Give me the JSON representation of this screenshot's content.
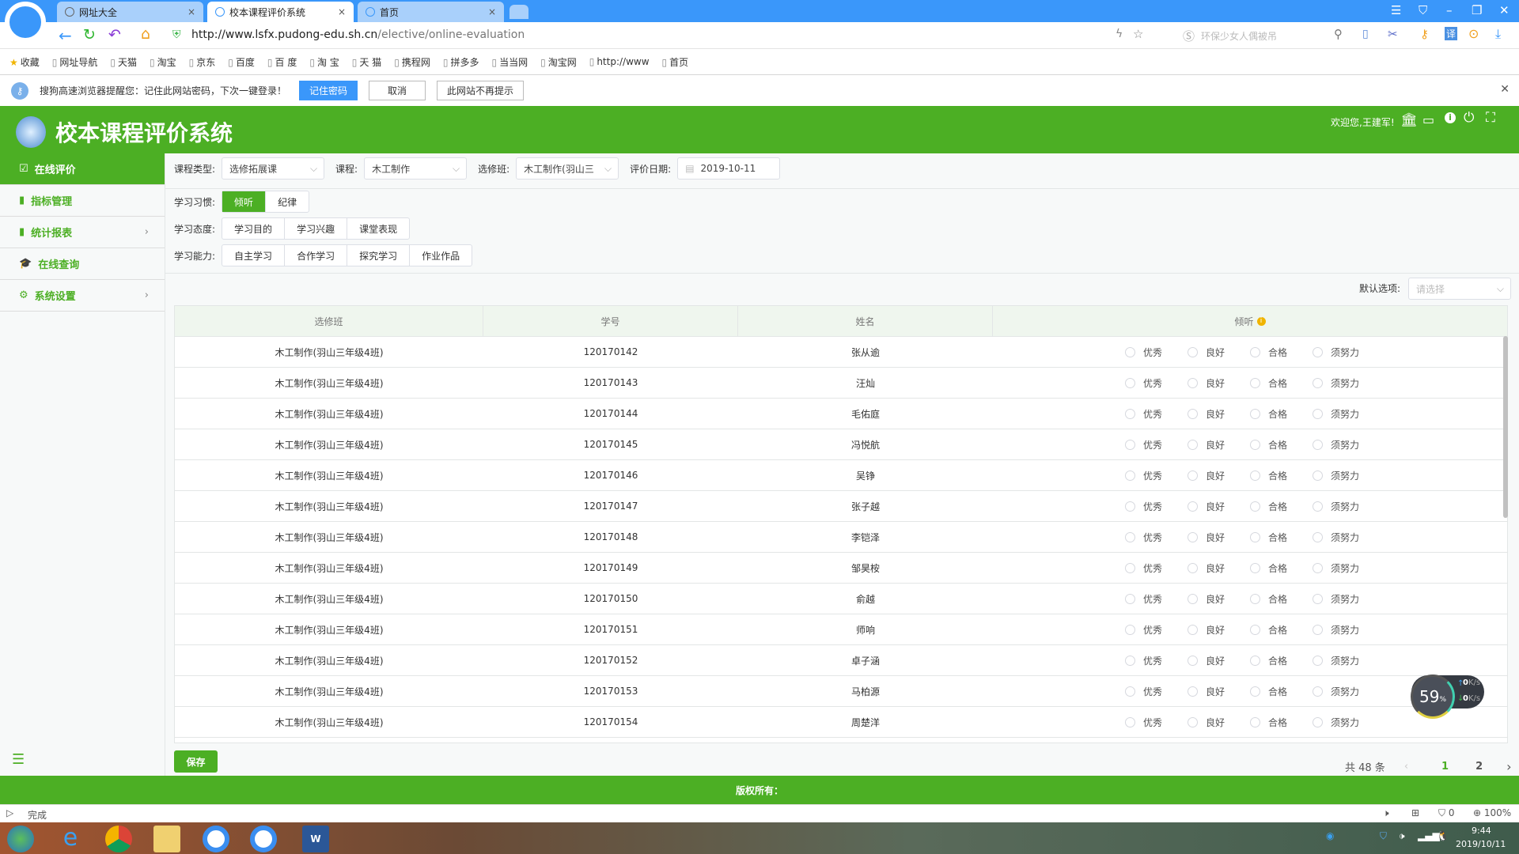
{
  "browser": {
    "tabs": [
      {
        "label": "网址大全",
        "active": false
      },
      {
        "label": "校本课程评价系统",
        "active": true
      },
      {
        "label": "首页",
        "active": false
      }
    ],
    "url_host": "http://www.lsfx.pudong-edu.sh.cn",
    "url_path": "/elective/online-evaluation",
    "search_placeholder": "环保少女人偶被吊",
    "bookmarks": [
      "收藏",
      "网址导航",
      "天猫",
      "淘宝",
      "京东",
      "百度",
      "百 度",
      "淘 宝",
      "天 猫",
      "携程网",
      "拼多多",
      "当当网",
      "淘宝网",
      "http://www",
      "首页"
    ],
    "notice": {
      "text": "搜狗高速浏览器提醒您：记住此网站密码，下次一键登录！",
      "remember": "记住密码",
      "cancel": "取消",
      "never": "此网站不再提示"
    },
    "status_text": "完成",
    "ad_count": "0",
    "zoom": "100%",
    "speed": {
      "percent": "59",
      "unit": "%",
      "up": "0",
      "down": "0",
      "rate_unit": "K/s"
    }
  },
  "app": {
    "title": "校本课程评价系统",
    "welcome": "欢迎您,王建军!",
    "accent": "#4caf24",
    "sidebar": [
      {
        "label": "在线评价",
        "icon": "calendar-check-icon",
        "active": true
      },
      {
        "label": "指标管理",
        "icon": "book-icon"
      },
      {
        "label": "统计报表",
        "icon": "report-icon",
        "arrow": "›"
      },
      {
        "label": "在线查询",
        "icon": "graduation-cap-icon"
      },
      {
        "label": "系统设置",
        "icon": "gear-icon",
        "arrow": "›"
      }
    ],
    "filters": {
      "course_type_label": "课程类型:",
      "course_type": "选修拓展课",
      "course_label": "课程:",
      "course": "木工制作",
      "class_label": "选修班:",
      "class": "木工制作(羽山三",
      "date_label": "评价日期:",
      "date": "2019-10-11"
    },
    "habit": {
      "label": "学习习惯:",
      "items": [
        "倾听",
        "纪律"
      ]
    },
    "attitude": {
      "label": "学习态度:",
      "items": [
        "学习目的",
        "学习兴趣",
        "课堂表现"
      ]
    },
    "ability": {
      "label": "学习能力:",
      "items": [
        "自主学习",
        "合作学习",
        "探究学习",
        "作业作品"
      ]
    },
    "default_option": {
      "label": "默认选项:",
      "placeholder": "请选择"
    },
    "table": {
      "headers": [
        "选修班",
        "学号",
        "姓名",
        "倾听"
      ],
      "options": [
        "优秀",
        "良好",
        "合格",
        "须努力"
      ],
      "rows": [
        [
          "木工制作(羽山三年级4班)",
          "120170142",
          "张从逾"
        ],
        [
          "木工制作(羽山三年级4班)",
          "120170143",
          "汪灿"
        ],
        [
          "木工制作(羽山三年级4班)",
          "120170144",
          "毛佑庭"
        ],
        [
          "木工制作(羽山三年级4班)",
          "120170145",
          "冯悦航"
        ],
        [
          "木工制作(羽山三年级4班)",
          "120170146",
          "吴铮"
        ],
        [
          "木工制作(羽山三年级4班)",
          "120170147",
          "张子越"
        ],
        [
          "木工制作(羽山三年级4班)",
          "120170148",
          "李铠泽"
        ],
        [
          "木工制作(羽山三年级4班)",
          "120170149",
          "邹昊桉"
        ],
        [
          "木工制作(羽山三年级4班)",
          "120170150",
          "俞越"
        ],
        [
          "木工制作(羽山三年级4班)",
          "120170151",
          "师响"
        ],
        [
          "木工制作(羽山三年级4班)",
          "120170152",
          "卓子涵"
        ],
        [
          "木工制作(羽山三年级4班)",
          "120170153",
          "马柏源"
        ],
        [
          "木工制作(羽山三年级4班)",
          "120170154",
          "周楚洋"
        ]
      ]
    },
    "save": "保存",
    "pagination": {
      "total": "共 48 条",
      "pages": [
        "1",
        "2"
      ],
      "current": "1"
    },
    "footer": "版权所有："
  },
  "taskbar": {
    "time": "9:44",
    "date": "2019/10/11"
  }
}
